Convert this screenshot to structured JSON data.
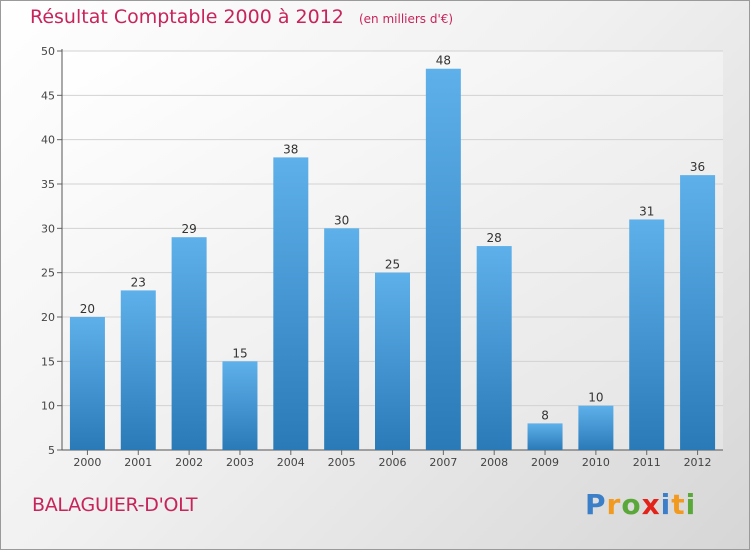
{
  "header": {
    "title": "Résultat Comptable 2000 à 2012",
    "subtitle": "(en milliers d'€)"
  },
  "commune": "BALAGUIER-D'OLT",
  "logo": {
    "text": "Proxiti",
    "letter_colors": [
      "#3b7fc9",
      "#f29a1f",
      "#5aa83a",
      "#e2231a",
      "#3b7fc9",
      "#f29a1f",
      "#5aa83a"
    ]
  },
  "chart_data": {
    "type": "bar",
    "title": "Résultat Comptable 2000 à 2012",
    "subtitle": "(en milliers d'€)",
    "categories": [
      "2000",
      "2001",
      "2002",
      "2003",
      "2004",
      "2005",
      "2006",
      "2007",
      "2008",
      "2009",
      "2010",
      "2011",
      "2012"
    ],
    "values": [
      20,
      23,
      29,
      15,
      38,
      30,
      25,
      48,
      28,
      8,
      10,
      31,
      36
    ],
    "ylim": [
      5,
      50
    ],
    "yticks": [
      5,
      10,
      15,
      20,
      25,
      30,
      35,
      40,
      45,
      50
    ],
    "xlabel": "",
    "ylabel": "",
    "grid": true,
    "bar_color_top": "#5eb0ea",
    "bar_color_bottom": "#2a7ab8"
  }
}
